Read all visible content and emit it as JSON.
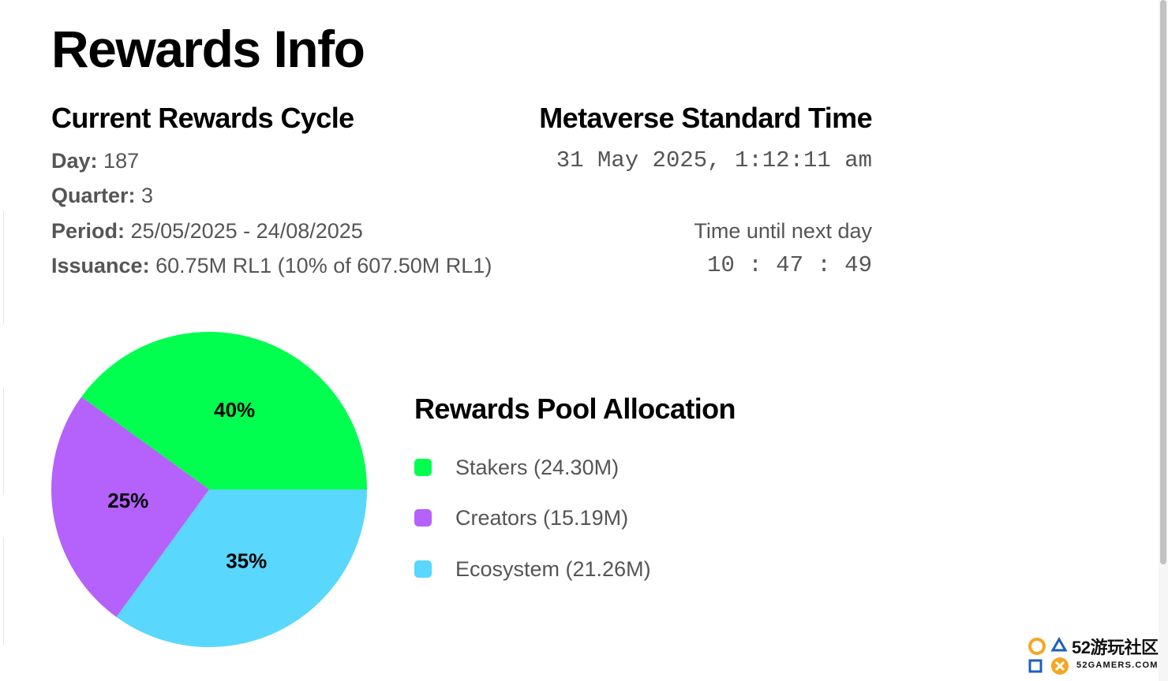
{
  "page": {
    "title": "Rewards Info"
  },
  "cycle": {
    "title": "Current Rewards Cycle",
    "day_label": "Day:",
    "day_value": "187",
    "quarter_label": "Quarter:",
    "quarter_value": "3",
    "period_label": "Period:",
    "period_value": "25/05/2025 - 24/08/2025",
    "issuance_label": "Issuance:",
    "issuance_value": "60.75M RL1 (10% of 607.50M RL1)"
  },
  "mst": {
    "title": "Metaverse Standard Time",
    "datetime": "31 May 2025, 1:12:11 am",
    "next_day_label": "Time until next day",
    "countdown": "10 : 47 : 49"
  },
  "allocation": {
    "title": "Rewards Pool Allocation",
    "items": [
      {
        "label": "Stakers (24.30M)",
        "color": "#00ff4f"
      },
      {
        "label": "Creators (15.19M)",
        "color": "#b561fb"
      },
      {
        "label": "Ecosystem (21.26M)",
        "color": "#59d7fd"
      }
    ]
  },
  "chart_data": {
    "type": "pie",
    "categories": [
      "Stakers",
      "Creators",
      "Ecosystem"
    ],
    "values": [
      40,
      25,
      35
    ],
    "labels": [
      "40%",
      "25%",
      "35%"
    ],
    "colors": [
      "#00ff4f",
      "#b561fb",
      "#59d7fd"
    ]
  },
  "watermark": {
    "brand": "52游玩社区",
    "site": "52GAMERS.COM"
  }
}
